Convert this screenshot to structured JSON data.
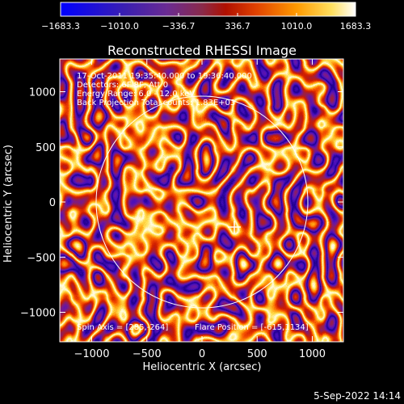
{
  "colorbar": {
    "tick_labels": [
      "−1683.3",
      "−1010.0",
      "−336.7",
      "336.7",
      "1010.0",
      "1683.3"
    ],
    "tick_values": [
      -1683.3,
      -1010.0,
      -336.7,
      336.7,
      1010.0,
      1683.3
    ],
    "range": [
      -1683.3,
      1683.3
    ],
    "colormap": [
      "#0000ff",
      "#3b1fb0",
      "#6a2b93",
      "#8a2a4a",
      "#b01000",
      "#e04000",
      "#ff9a00",
      "#ffe060",
      "#ffffff"
    ]
  },
  "plot": {
    "title": "Reconstructed RHESSI Image",
    "xlabel": "Heliocentric X (arcsec)",
    "ylabel": "Heliocentric Y (arcsec)",
    "x_ticks": [
      "−1000",
      "−500",
      "0",
      "500",
      "1000"
    ],
    "y_ticks": [
      "1000",
      "500",
      "0",
      "−500",
      "−1000"
    ],
    "info_lines": [
      "17-Oct-2011 19:35:40.000 to 19:36:40.000",
      "Detectors: 6F 8F, Att 0",
      "Energy Range: 6.0 - 12.0 keV",
      "Back Projection    Total counts: 1.83E+03"
    ],
    "spin_axis": "Spin Axis = [285,-264]",
    "flare_position": "Flare Position = [-615,1134]",
    "colors": {
      "limb": "#ffffff",
      "marker": "#ffffff"
    }
  },
  "footer": {
    "timestamp": "5-Sep-2022 14:14"
  }
}
